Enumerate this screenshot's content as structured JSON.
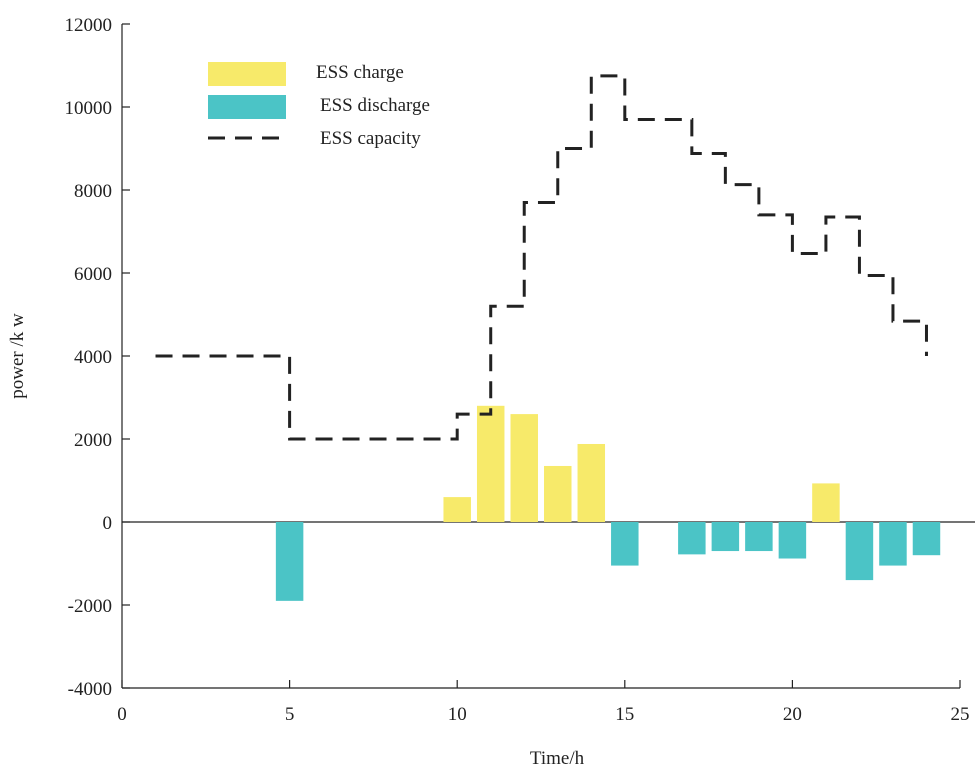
{
  "chart_data": {
    "type": "bar",
    "title": "",
    "xlabel": "Time/h",
    "ylabel": "power /k w",
    "xlim": [
      0,
      25
    ],
    "ylim": [
      -4000,
      12000
    ],
    "x_ticks": [
      0,
      5,
      10,
      15,
      20,
      25
    ],
    "y_ticks": [
      -4000,
      -2000,
      0,
      2000,
      4000,
      6000,
      8000,
      10000,
      12000
    ],
    "x_tick_labels": [
      "0",
      "5",
      "10",
      "15",
      "20",
      "25"
    ],
    "y_tick_labels": [
      "-4000",
      "-2000",
      "0",
      "2000",
      "4000",
      "6000",
      "8000",
      "10000",
      "12000"
    ],
    "grid": false,
    "legend_position": "top-left",
    "series": [
      {
        "name": "ESS charge",
        "kind": "bar",
        "color": "#f7ea6a",
        "hours": [
          10,
          11,
          12,
          13,
          14,
          21
        ],
        "values": [
          600,
          2800,
          2600,
          1350,
          1880,
          930
        ]
      },
      {
        "name": "ESS discharge",
        "kind": "bar",
        "color": "#4bc4c6",
        "hours": [
          5,
          15,
          17,
          18,
          19,
          20,
          22,
          23,
          24
        ],
        "values": [
          -1900,
          -1050,
          -780,
          -700,
          -700,
          -880,
          -1400,
          -1050,
          -800
        ]
      },
      {
        "name": "ESS capacity",
        "kind": "step-line",
        "color": "#222222",
        "style": "dashed",
        "x": [
          1,
          5,
          10,
          11,
          12,
          13,
          14,
          15,
          17,
          18,
          19,
          20,
          21,
          22,
          23,
          24
        ],
        "values": [
          4000,
          2000,
          2600,
          5200,
          7700,
          9000,
          10750,
          9700,
          8880,
          8130,
          7400,
          6470,
          7350,
          5940,
          4840,
          4000
        ]
      }
    ]
  }
}
